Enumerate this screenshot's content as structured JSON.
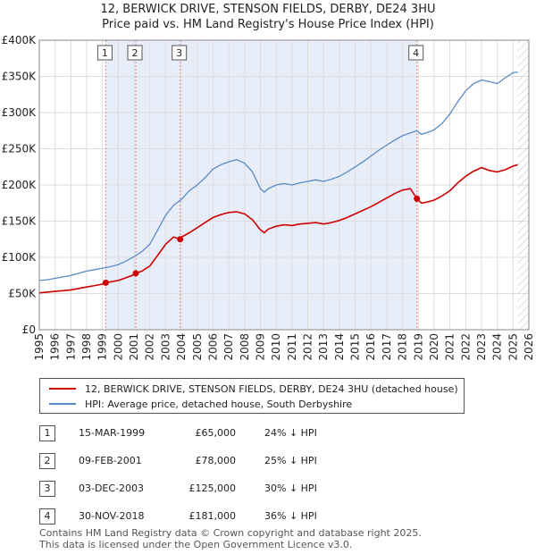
{
  "title_line1": "12, BERWICK DRIVE, STENSON FIELDS, DERBY, DE24 3HU",
  "title_line2": "Price paid vs. HM Land Registry's House Price Index (HPI)",
  "chart_data": {
    "type": "line",
    "title": "12, BERWICK DRIVE, STENSON FIELDS, DERBY, DE24 3HU — Price paid vs. HM Land Registry's House Price Index (HPI)",
    "xlabel": "",
    "ylabel": "",
    "xlim": [
      1995,
      2026
    ],
    "ylim": [
      0,
      400000
    ],
    "y_ticks": [
      0,
      50000,
      100000,
      150000,
      200000,
      250000,
      300000,
      350000,
      400000
    ],
    "y_tick_labels": [
      "£0",
      "£50K",
      "£100K",
      "£150K",
      "£200K",
      "£250K",
      "£300K",
      "£350K",
      "£400K"
    ],
    "x_ticks": [
      1995,
      1996,
      1997,
      1998,
      1999,
      2000,
      2001,
      2002,
      2003,
      2004,
      2005,
      2006,
      2007,
      2008,
      2009,
      2010,
      2011,
      2012,
      2013,
      2014,
      2015,
      2016,
      2017,
      2018,
      2019,
      2020,
      2021,
      2022,
      2023,
      2024,
      2025,
      2026
    ],
    "grid": true,
    "hatched_region_from": 2025.3,
    "series": [
      {
        "name": "HPI: Average price, detached house, South Derbyshire",
        "color": "#5a8ac6",
        "x": [
          1995.0,
          1995.5,
          1996.0,
          1996.5,
          1997.0,
          1997.5,
          1998.0,
          1998.5,
          1999.0,
          1999.5,
          2000.0,
          2000.5,
          2001.0,
          2001.5,
          2002.0,
          2002.5,
          2003.0,
          2003.5,
          2004.0,
          2004.5,
          2005.0,
          2005.5,
          2006.0,
          2006.5,
          2007.0,
          2007.5,
          2008.0,
          2008.5,
          2009.0,
          2009.25,
          2009.5,
          2010.0,
          2010.5,
          2011.0,
          2011.5,
          2012.0,
          2012.5,
          2013.0,
          2013.5,
          2014.0,
          2014.5,
          2015.0,
          2015.5,
          2016.0,
          2016.5,
          2017.0,
          2017.5,
          2018.0,
          2018.5,
          2018.9,
          2019.2,
          2019.5,
          2020.0,
          2020.5,
          2021.0,
          2021.5,
          2022.0,
          2022.5,
          2023.0,
          2023.5,
          2024.0,
          2024.5,
          2025.0,
          2025.3
        ],
        "values": [
          68000,
          69000,
          71000,
          73000,
          75000,
          78000,
          81000,
          83000,
          85000,
          87000,
          90000,
          95000,
          101000,
          108000,
          118000,
          138000,
          158000,
          172000,
          180000,
          192000,
          200000,
          210000,
          222000,
          228000,
          232000,
          235000,
          230000,
          218000,
          195000,
          190000,
          195000,
          200000,
          202000,
          200000,
          203000,
          205000,
          207000,
          205000,
          208000,
          212000,
          218000,
          225000,
          232000,
          240000,
          248000,
          255000,
          262000,
          268000,
          272000,
          275000,
          270000,
          272000,
          276000,
          285000,
          298000,
          315000,
          330000,
          340000,
          345000,
          343000,
          340000,
          348000,
          355000,
          356000
        ]
      },
      {
        "name": "12, BERWICK DRIVE, STENSON FIELDS, DERBY, DE24 3HU (detached house)",
        "color": "#cc0000",
        "x": [
          1995.0,
          1995.5,
          1996.0,
          1996.5,
          1997.0,
          1997.5,
          1998.0,
          1998.5,
          1999.0,
          1999.21,
          1999.5,
          2000.0,
          2000.5,
          2001.0,
          2001.11,
          2001.5,
          2002.0,
          2002.5,
          2003.0,
          2003.5,
          2003.92,
          2004.0,
          2004.5,
          2005.0,
          2005.5,
          2006.0,
          2006.5,
          2007.0,
          2007.5,
          2008.0,
          2008.5,
          2009.0,
          2009.25,
          2009.5,
          2010.0,
          2010.5,
          2011.0,
          2011.5,
          2012.0,
          2012.5,
          2013.0,
          2013.5,
          2014.0,
          2014.5,
          2015.0,
          2015.5,
          2016.0,
          2016.5,
          2017.0,
          2017.5,
          2018.0,
          2018.5,
          2018.91,
          2019.2,
          2019.5,
          2020.0,
          2020.5,
          2021.0,
          2021.5,
          2022.0,
          2022.5,
          2023.0,
          2023.5,
          2024.0,
          2024.5,
          2025.0,
          2025.3
        ],
        "values": [
          51000,
          52000,
          53000,
          54000,
          55000,
          57000,
          59000,
          61000,
          63000,
          65000,
          66000,
          68000,
          72000,
          76000,
          78000,
          81000,
          88000,
          103000,
          118000,
          128000,
          125000,
          128000,
          134000,
          141000,
          148000,
          155000,
          159000,
          162000,
          163000,
          160000,
          152000,
          138000,
          134000,
          139000,
          143000,
          145000,
          144000,
          146000,
          147000,
          148000,
          146000,
          148000,
          151000,
          155000,
          160000,
          165000,
          170000,
          176000,
          182000,
          188000,
          193000,
          195000,
          181000,
          175000,
          176000,
          179000,
          185000,
          192000,
          203000,
          212000,
          219000,
          224000,
          220000,
          218000,
          221000,
          226000,
          228000
        ]
      }
    ],
    "sale_markers": [
      {
        "label": "1",
        "x": 1999.21,
        "value": 65000
      },
      {
        "label": "2",
        "x": 2001.11,
        "value": 78000
      },
      {
        "label": "3",
        "x": 2003.92,
        "value": 125000
      },
      {
        "label": "4",
        "x": 2018.91,
        "value": 181000
      }
    ]
  },
  "legend": {
    "property_label": "12, BERWICK DRIVE, STENSON FIELDS, DERBY, DE24 3HU (detached house)",
    "hpi_label": "HPI: Average price, detached house, South Derbyshire"
  },
  "sales": [
    {
      "num": "1",
      "date": "15-MAR-1999",
      "price": "£65,000",
      "diff": "24% ↓ HPI"
    },
    {
      "num": "2",
      "date": "09-FEB-2001",
      "price": "£78,000",
      "diff": "25% ↓ HPI"
    },
    {
      "num": "3",
      "date": "03-DEC-2003",
      "price": "£125,000",
      "diff": "30% ↓ HPI"
    },
    {
      "num": "4",
      "date": "30-NOV-2018",
      "price": "£181,000",
      "diff": "36% ↓ HPI"
    }
  ],
  "footer_line1": "Contains HM Land Registry data © Crown copyright and database right 2025.",
  "footer_line2": "This data is licensed under the Open Government Licence v3.0."
}
